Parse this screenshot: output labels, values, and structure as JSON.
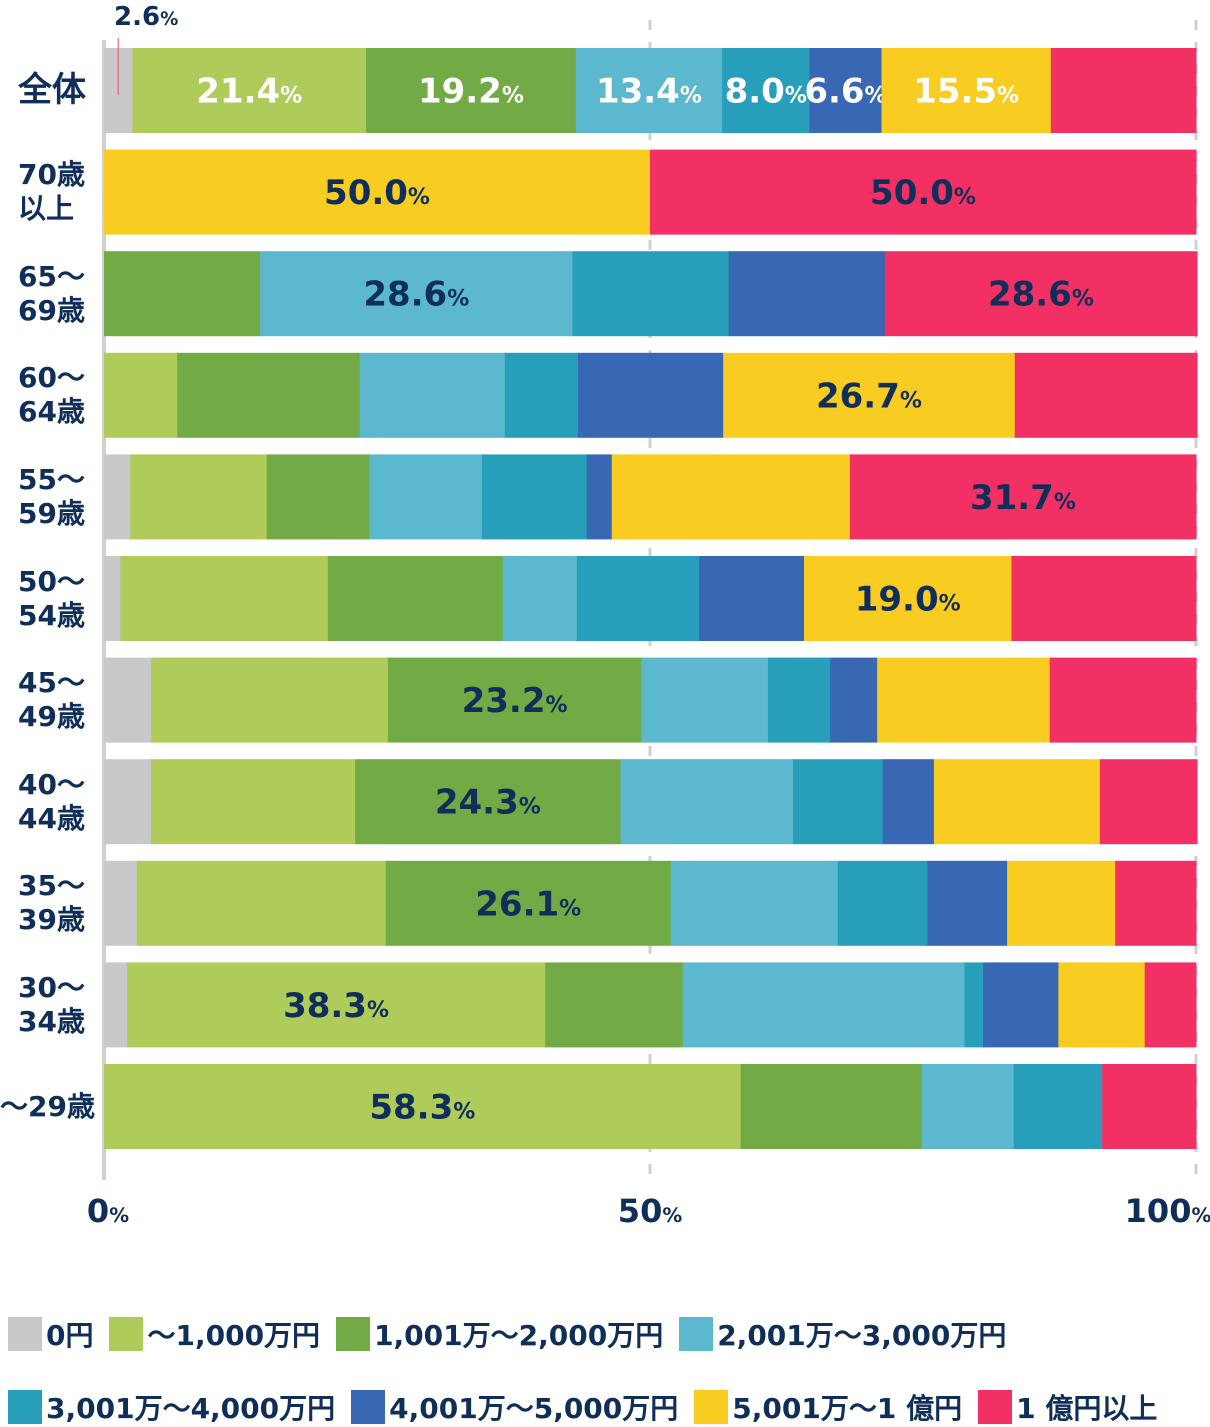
{
  "chart_data": {
    "type": "bar",
    "orientation": "horizontal",
    "stacked": true,
    "categories": [
      "全体",
      "70歳\n以上",
      "65〜\n69歳",
      "60〜\n64歳",
      "55〜\n59歳",
      "50〜\n54歳",
      "45〜\n49歳",
      "40〜\n44歳",
      "35〜\n39歳",
      "30〜\n34歳",
      "〜29歳"
    ],
    "series": [
      {
        "name": "0円",
        "color": "#c8c9cb",
        "values": [
          2.6,
          0,
          0,
          0,
          2.4,
          1.5,
          4.3,
          4.3,
          3.0,
          2.1,
          0
        ]
      },
      {
        "name": "〜1,000万円",
        "color": "#afcb5a",
        "values": [
          21.4,
          0,
          0,
          6.7,
          12.5,
          19.0,
          21.7,
          18.7,
          22.8,
          38.3,
          58.3
        ]
      },
      {
        "name": "1,001万〜2,000万円",
        "color": "#72ab46",
        "values": [
          19.2,
          0,
          14.3,
          16.7,
          9.4,
          16.0,
          23.2,
          24.3,
          26.1,
          12.6,
          16.6
        ]
      },
      {
        "name": "2,001万〜3,000万円",
        "color": "#5bb8cf",
        "values": [
          13.4,
          0,
          28.6,
          13.3,
          10.3,
          6.8,
          11.6,
          15.8,
          15.3,
          25.8,
          8.4
        ]
      },
      {
        "name": "3,001万〜4,000万円",
        "color": "#279fbb",
        "values": [
          8.0,
          0,
          14.3,
          6.7,
          9.6,
          11.2,
          5.7,
          8.2,
          8.2,
          1.7,
          8.1
        ]
      },
      {
        "name": "4,001万〜5,000万円",
        "color": "#3867b3",
        "values": [
          6.6,
          0,
          14.3,
          13.3,
          2.3,
          9.6,
          4.3,
          4.7,
          7.3,
          6.9,
          0
        ]
      },
      {
        "name": "5,001万〜1 億円",
        "color": "#f9cc22",
        "values": [
          15.5,
          50.0,
          0,
          26.7,
          21.8,
          19.0,
          15.8,
          15.2,
          9.9,
          7.9,
          0
        ]
      },
      {
        "name": "1 億円以上",
        "color": "#f33064",
        "values": [
          13.3,
          50.0,
          28.6,
          16.7,
          31.7,
          16.9,
          13.4,
          8.9,
          7.4,
          4.7,
          8.6
        ]
      }
    ],
    "data_labels": [
      [
        "2.6",
        "21.4",
        "19.2",
        "13.4",
        "8.0",
        "6.6",
        "15.5",
        null
      ],
      [
        null,
        null,
        null,
        null,
        null,
        null,
        "50.0",
        "50.0"
      ],
      [
        null,
        null,
        null,
        "28.6",
        null,
        null,
        null,
        "28.6"
      ],
      [
        null,
        null,
        null,
        null,
        null,
        null,
        "26.7",
        null
      ],
      [
        null,
        null,
        null,
        null,
        null,
        null,
        null,
        "31.7"
      ],
      [
        null,
        null,
        null,
        null,
        null,
        null,
        "19.0",
        null
      ],
      [
        null,
        null,
        "23.2",
        null,
        null,
        null,
        null,
        null
      ],
      [
        null,
        null,
        "24.3",
        null,
        null,
        null,
        null,
        null
      ],
      [
        null,
        null,
        "26.1",
        null,
        null,
        null,
        null,
        null
      ],
      [
        null,
        "38.3",
        null,
        null,
        null,
        null,
        null,
        null
      ],
      [
        null,
        "58.3",
        null,
        null,
        null,
        null,
        null,
        null
      ]
    ],
    "percent_sign": "%",
    "xlim": [
      0,
      100
    ],
    "xticks": [
      "0",
      "50",
      "100"
    ],
    "grid": "dashed vertical at 50 and 100",
    "legend_position": "bottom",
    "label_color_dark": "#0f2e5a",
    "label_color_light": "#ffffff"
  }
}
